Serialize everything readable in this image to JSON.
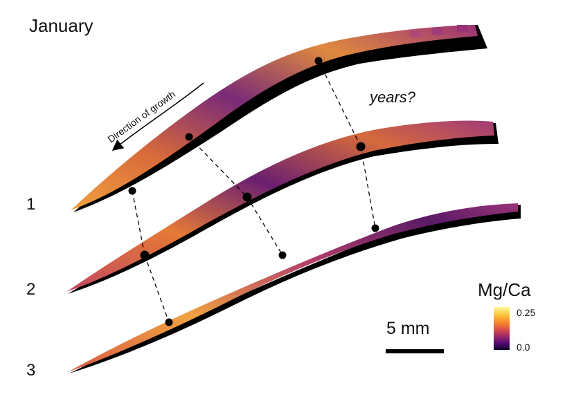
{
  "title": "January",
  "growth_label": "Direction of growth",
  "annotation": "years?",
  "rows": [
    "1",
    "2",
    "3"
  ],
  "scale": {
    "label": "5 mm"
  },
  "colorbar": {
    "title": "Mg/Ca",
    "max": "0.25",
    "min": "0.0",
    "colormap": "inferno"
  },
  "colors": {
    "dark": "#2a0a4a",
    "mid": "#8a2a7a",
    "hot": "#e07030",
    "light": "#f6c048",
    "shell_edge": "#000000"
  }
}
